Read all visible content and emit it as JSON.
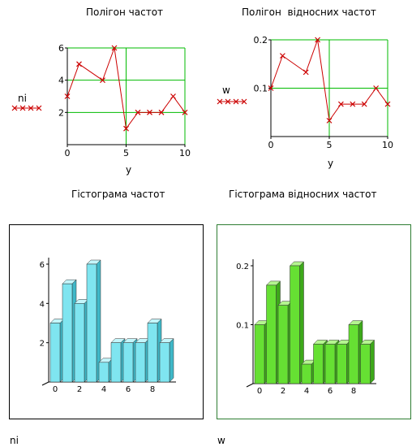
{
  "chart_data": [
    {
      "type": "line",
      "title": "Полігон частот",
      "xlabel": "y",
      "legend_name": "ni",
      "x": [
        0,
        1,
        3,
        4,
        5,
        6,
        7,
        8,
        9,
        10
      ],
      "y": [
        3,
        5,
        4,
        6,
        1,
        2,
        2,
        2,
        3,
        2
      ],
      "xlim": [
        0,
        10
      ],
      "ylim": [
        0,
        6
      ],
      "xticks": [
        "0",
        "5",
        "10"
      ],
      "yticks": [
        "2",
        "4",
        "6"
      ],
      "line_color": "#cc0000",
      "grid_color": "#00bb00",
      "grid": true
    },
    {
      "type": "line",
      "title": "Полігон  відносних частот",
      "xlabel": "y",
      "legend_name": "w",
      "x": [
        0,
        1,
        3,
        4,
        5,
        6,
        7,
        8,
        9,
        10
      ],
      "y": [
        0.1,
        0.167,
        0.133,
        0.2,
        0.033,
        0.067,
        0.067,
        0.067,
        0.1,
        0.067
      ],
      "xlim": [
        0,
        10
      ],
      "ylim": [
        0,
        0.2
      ],
      "xticks": [
        "0",
        "5",
        "10"
      ],
      "yticks": [
        "0.1",
        "0.2"
      ],
      "line_color": "#cc0000",
      "grid_color": "#00bb00",
      "grid": true
    },
    {
      "type": "bar",
      "title": "Гістограма частот",
      "caption": "ni",
      "values": [
        3,
        5,
        4,
        6,
        1,
        2,
        2,
        2,
        3,
        2
      ],
      "xticks": [
        "0",
        "2",
        "4",
        "6",
        "8"
      ],
      "yticks": [
        "2",
        "4",
        "6"
      ],
      "ylim": [
        0,
        6
      ],
      "bar_color": "#7fe5f0",
      "bar_dark": "#3fb8c8",
      "bar_top": "#c4f6fb"
    },
    {
      "type": "bar",
      "title": "Гістограма відносних частот",
      "caption": "w",
      "values": [
        0.1,
        0.167,
        0.133,
        0.2,
        0.033,
        0.067,
        0.067,
        0.067,
        0.1,
        0.067
      ],
      "xticks": [
        "0",
        "2",
        "4",
        "6",
        "8"
      ],
      "yticks": [
        "0.1",
        "0.2"
      ],
      "ylim": [
        0,
        0.2
      ],
      "bar_color": "#66e033",
      "bar_dark": "#3da81a",
      "bar_top": "#b5f590"
    }
  ]
}
